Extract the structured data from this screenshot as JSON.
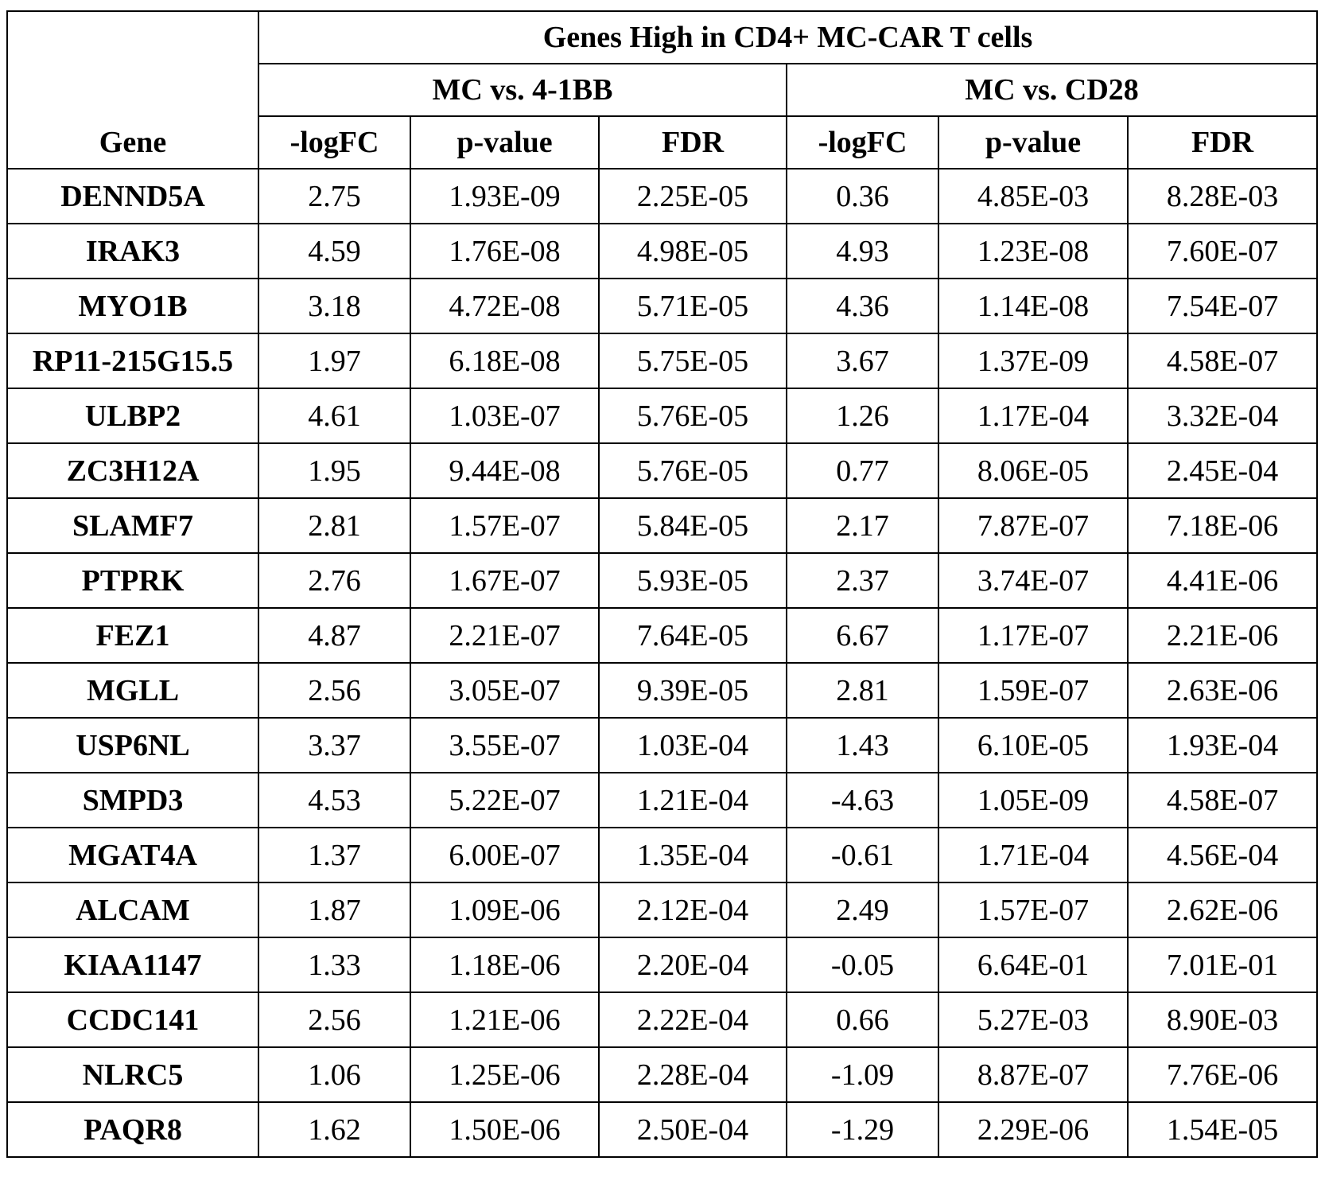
{
  "header": {
    "title": "Genes High in CD4+ MC-CAR T cells",
    "groups": [
      "MC vs. 4-1BB",
      "MC vs. CD28"
    ]
  },
  "table": {
    "columns": [
      "Gene",
      "-logFC",
      "p-value",
      "FDR",
      "-logFC",
      "p-value",
      "FDR"
    ],
    "rows": [
      [
        "DENND5A",
        "2.75",
        "1.93E-09",
        "2.25E-05",
        "0.36",
        "4.85E-03",
        "8.28E-03"
      ],
      [
        "IRAK3",
        "4.59",
        "1.76E-08",
        "4.98E-05",
        "4.93",
        "1.23E-08",
        "7.60E-07"
      ],
      [
        "MYO1B",
        "3.18",
        "4.72E-08",
        "5.71E-05",
        "4.36",
        "1.14E-08",
        "7.54E-07"
      ],
      [
        "RP11-215G15.5",
        "1.97",
        "6.18E-08",
        "5.75E-05",
        "3.67",
        "1.37E-09",
        "4.58E-07"
      ],
      [
        "ULBP2",
        "4.61",
        "1.03E-07",
        "5.76E-05",
        "1.26",
        "1.17E-04",
        "3.32E-04"
      ],
      [
        "ZC3H12A",
        "1.95",
        "9.44E-08",
        "5.76E-05",
        "0.77",
        "8.06E-05",
        "2.45E-04"
      ],
      [
        "SLAMF7",
        "2.81",
        "1.57E-07",
        "5.84E-05",
        "2.17",
        "7.87E-07",
        "7.18E-06"
      ],
      [
        "PTPRK",
        "2.76",
        "1.67E-07",
        "5.93E-05",
        "2.37",
        "3.74E-07",
        "4.41E-06"
      ],
      [
        "FEZ1",
        "4.87",
        "2.21E-07",
        "7.64E-05",
        "6.67",
        "1.17E-07",
        "2.21E-06"
      ],
      [
        "MGLL",
        "2.56",
        "3.05E-07",
        "9.39E-05",
        "2.81",
        "1.59E-07",
        "2.63E-06"
      ],
      [
        "USP6NL",
        "3.37",
        "3.55E-07",
        "1.03E-04",
        "1.43",
        "6.10E-05",
        "1.93E-04"
      ],
      [
        "SMPD3",
        "4.53",
        "5.22E-07",
        "1.21E-04",
        "-4.63",
        "1.05E-09",
        "4.58E-07"
      ],
      [
        "MGAT4A",
        "1.37",
        "6.00E-07",
        "1.35E-04",
        "-0.61",
        "1.71E-04",
        "4.56E-04"
      ],
      [
        "ALCAM",
        "1.87",
        "1.09E-06",
        "2.12E-04",
        "2.49",
        "1.57E-07",
        "2.62E-06"
      ],
      [
        "KIAA1147",
        "1.33",
        "1.18E-06",
        "2.20E-04",
        "-0.05",
        "6.64E-01",
        "7.01E-01"
      ],
      [
        "CCDC141",
        "2.56",
        "1.21E-06",
        "2.22E-04",
        "0.66",
        "5.27E-03",
        "8.90E-03"
      ],
      [
        "NLRC5",
        "1.06",
        "1.25E-06",
        "2.28E-04",
        "-1.09",
        "8.87E-07",
        "7.76E-06"
      ],
      [
        "PAQR8",
        "1.62",
        "1.50E-06",
        "2.50E-04",
        "-1.29",
        "2.29E-06",
        "1.54E-05"
      ]
    ]
  }
}
